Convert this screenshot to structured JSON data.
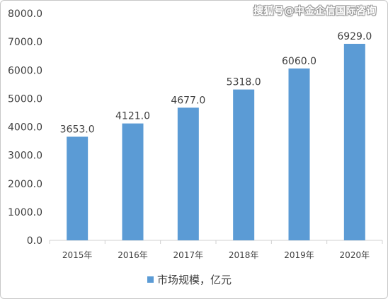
{
  "watermark": "搜狐号@中金企信国际咨询",
  "chart_data": {
    "type": "bar",
    "categories": [
      "2015年",
      "2016年",
      "2017年",
      "2018年",
      "2019年",
      "2020年"
    ],
    "series": [
      {
        "name": "市场规模，亿元",
        "values": [
          3653.0,
          4121.0,
          4677.0,
          5318.0,
          6060.0,
          6929.0
        ],
        "data_labels": [
          "3653.0",
          "4121.0",
          "4677.0",
          "5318.0",
          "6060.0",
          "6929.0"
        ],
        "color": "#5b9bd5"
      }
    ],
    "ylim": [
      0,
      8000
    ],
    "yticks": [
      0,
      1000,
      2000,
      3000,
      4000,
      5000,
      6000,
      7000,
      8000
    ],
    "ytick_labels": [
      "0.0",
      "1000.0",
      "2000.0",
      "3000.0",
      "4000.0",
      "5000.0",
      "6000.0",
      "7000.0",
      "8000.0"
    ],
    "grid": false,
    "legend_position": "bottom"
  }
}
